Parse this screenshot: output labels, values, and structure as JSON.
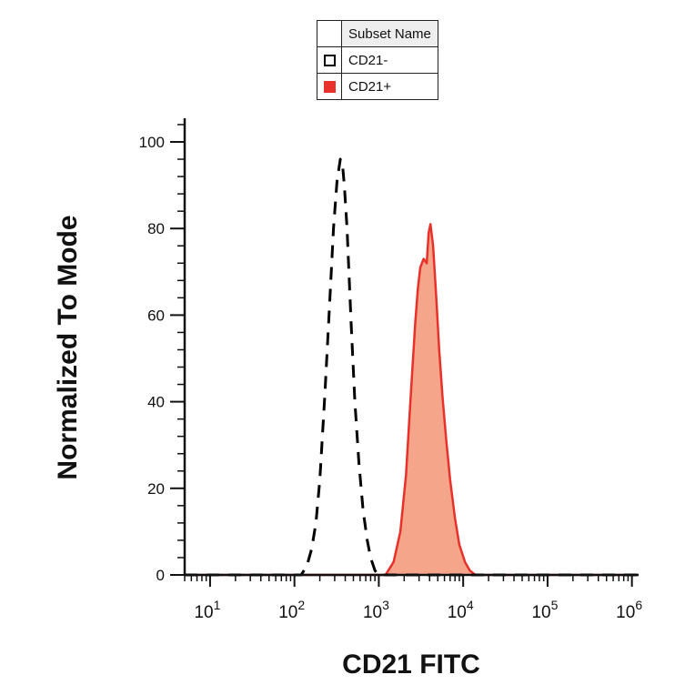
{
  "legend": {
    "header": "Subset Name",
    "entries": [
      {
        "label": "CD21-",
        "fill": "#ffffff",
        "stroke": "#000000",
        "style": "dashed"
      },
      {
        "label": "CD21+",
        "fill": "#f5a58a",
        "stroke": "#e8312a",
        "style": "filled"
      }
    ]
  },
  "chart_data": {
    "type": "area",
    "xlabel": "CD21 FITC",
    "ylabel": "Normalized To Mode",
    "xscale": "log",
    "xlim": [
      5,
      1200000
    ],
    "ylim": [
      0,
      105
    ],
    "y_ticks": [
      0,
      20,
      40,
      60,
      80,
      100
    ],
    "x_ticks": [
      {
        "value": 10,
        "base": "10",
        "exp": "1"
      },
      {
        "value": 100,
        "base": "10",
        "exp": "2"
      },
      {
        "value": 1000,
        "base": "10",
        "exp": "3"
      },
      {
        "value": 10000,
        "base": "10",
        "exp": "4"
      },
      {
        "value": 100000,
        "base": "10",
        "exp": "5"
      },
      {
        "value": 1000000,
        "base": "10",
        "exp": "6"
      }
    ],
    "series": [
      {
        "name": "CD21-",
        "x": [
          5,
          120,
          140,
          160,
          180,
          200,
          230,
          260,
          290,
          320,
          350,
          370,
          390,
          420,
          470,
          520,
          580,
          650,
          730,
          800,
          900,
          1000,
          1200000
        ],
        "y": [
          0,
          0,
          2,
          6,
          12,
          22,
          42,
          62,
          80,
          91,
          96,
          95,
          90,
          80,
          58,
          40,
          26,
          15,
          8,
          4,
          1,
          0,
          0
        ]
      },
      {
        "name": "CD21+",
        "x": [
          5,
          1200,
          1500,
          1800,
          2100,
          2400,
          2700,
          2900,
          3100,
          3400,
          3700,
          3900,
          4100,
          4400,
          4800,
          5200,
          5700,
          6300,
          7000,
          8000,
          9000,
          10500,
          12000,
          14000,
          1200000
        ],
        "y": [
          0,
          0,
          3,
          10,
          23,
          42,
          58,
          66,
          71,
          73,
          72,
          79,
          81,
          76,
          64,
          52,
          41,
          31,
          22,
          13,
          7,
          3,
          1,
          0,
          0
        ]
      }
    ]
  }
}
